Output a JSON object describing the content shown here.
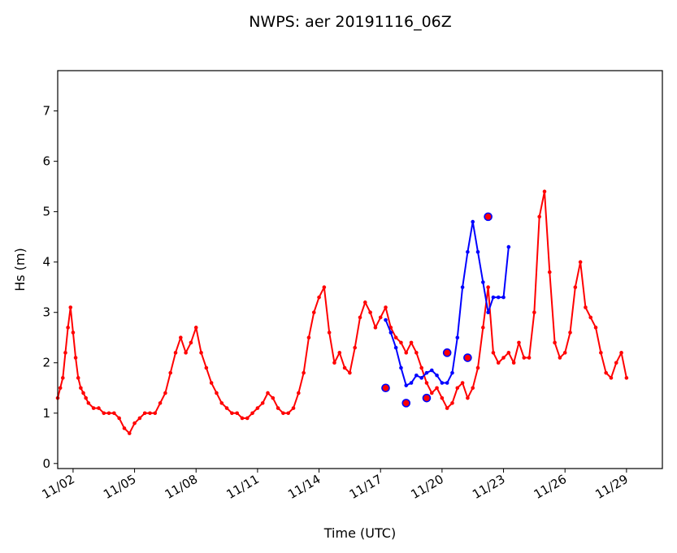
{
  "chart_data": {
    "type": "line",
    "title": "NWPS: aer 20191116_06Z",
    "xlabel": "Time (UTC)",
    "ylabel": "Hs (m)",
    "xlim": [
      "2019-11-01T06:00",
      "2019-11-30T18:00"
    ],
    "ylim": [
      -0.1,
      7.8
    ],
    "x_ticks": [
      {
        "label": "11/02",
        "date": "2019-11-02T00:00"
      },
      {
        "label": "11/05",
        "date": "2019-11-05T00:00"
      },
      {
        "label": "11/08",
        "date": "2019-11-08T00:00"
      },
      {
        "label": "11/11",
        "date": "2019-11-11T00:00"
      },
      {
        "label": "11/14",
        "date": "2019-11-14T00:00"
      },
      {
        "label": "11/17",
        "date": "2019-11-17T00:00"
      },
      {
        "label": "11/20",
        "date": "2019-11-20T00:00"
      },
      {
        "label": "11/23",
        "date": "2019-11-23T00:00"
      },
      {
        "label": "11/26",
        "date": "2019-11-26T00:00"
      },
      {
        "label": "11/29",
        "date": "2019-11-29T00:00"
      }
    ],
    "y_ticks": [
      0,
      1,
      2,
      3,
      4,
      5,
      6,
      7
    ],
    "grid": false,
    "series": [
      {
        "color": "#ff0000",
        "marker": "dot",
        "points": [
          [
            "2019-11-01T06:00",
            1.3
          ],
          [
            "2019-11-01T09:00",
            1.5
          ],
          [
            "2019-11-01T12:00",
            1.7
          ],
          [
            "2019-11-01T15:00",
            2.2
          ],
          [
            "2019-11-01T18:00",
            2.7
          ],
          [
            "2019-11-01T21:00",
            3.1
          ],
          [
            "2019-11-02T00:00",
            2.6
          ],
          [
            "2019-11-02T03:00",
            2.1
          ],
          [
            "2019-11-02T06:00",
            1.7
          ],
          [
            "2019-11-02T09:00",
            1.5
          ],
          [
            "2019-11-02T12:00",
            1.4
          ],
          [
            "2019-11-02T15:00",
            1.3
          ],
          [
            "2019-11-02T18:00",
            1.2
          ],
          [
            "2019-11-03T00:00",
            1.1
          ],
          [
            "2019-11-03T06:00",
            1.1
          ],
          [
            "2019-11-03T12:00",
            1.0
          ],
          [
            "2019-11-03T18:00",
            1.0
          ],
          [
            "2019-11-04T00:00",
            1.0
          ],
          [
            "2019-11-04T06:00",
            0.9
          ],
          [
            "2019-11-04T12:00",
            0.7
          ],
          [
            "2019-11-04T18:00",
            0.6
          ],
          [
            "2019-11-05T00:00",
            0.8
          ],
          [
            "2019-11-05T06:00",
            0.9
          ],
          [
            "2019-11-05T12:00",
            1.0
          ],
          [
            "2019-11-05T18:00",
            1.0
          ],
          [
            "2019-11-06T00:00",
            1.0
          ],
          [
            "2019-11-06T06:00",
            1.2
          ],
          [
            "2019-11-06T12:00",
            1.4
          ],
          [
            "2019-11-06T18:00",
            1.8
          ],
          [
            "2019-11-07T00:00",
            2.2
          ],
          [
            "2019-11-07T06:00",
            2.5
          ],
          [
            "2019-11-07T12:00",
            2.2
          ],
          [
            "2019-11-07T18:00",
            2.4
          ],
          [
            "2019-11-08T00:00",
            2.7
          ],
          [
            "2019-11-08T06:00",
            2.2
          ],
          [
            "2019-11-08T12:00",
            1.9
          ],
          [
            "2019-11-08T18:00",
            1.6
          ],
          [
            "2019-11-09T00:00",
            1.4
          ],
          [
            "2019-11-09T06:00",
            1.2
          ],
          [
            "2019-11-09T12:00",
            1.1
          ],
          [
            "2019-11-09T18:00",
            1.0
          ],
          [
            "2019-11-10T00:00",
            1.0
          ],
          [
            "2019-11-10T06:00",
            0.9
          ],
          [
            "2019-11-10T12:00",
            0.9
          ],
          [
            "2019-11-10T18:00",
            1.0
          ],
          [
            "2019-11-11T00:00",
            1.1
          ],
          [
            "2019-11-11T06:00",
            1.2
          ],
          [
            "2019-11-11T12:00",
            1.4
          ],
          [
            "2019-11-11T18:00",
            1.3
          ],
          [
            "2019-11-12T00:00",
            1.1
          ],
          [
            "2019-11-12T06:00",
            1.0
          ],
          [
            "2019-11-12T12:00",
            1.0
          ],
          [
            "2019-11-12T18:00",
            1.1
          ],
          [
            "2019-11-13T00:00",
            1.4
          ],
          [
            "2019-11-13T06:00",
            1.8
          ],
          [
            "2019-11-13T12:00",
            2.5
          ],
          [
            "2019-11-13T18:00",
            3.0
          ],
          [
            "2019-11-14T00:00",
            3.3
          ],
          [
            "2019-11-14T06:00",
            3.5
          ],
          [
            "2019-11-14T12:00",
            2.6
          ],
          [
            "2019-11-14T18:00",
            2.0
          ],
          [
            "2019-11-15T00:00",
            2.2
          ],
          [
            "2019-11-15T06:00",
            1.9
          ],
          [
            "2019-11-15T12:00",
            1.8
          ],
          [
            "2019-11-15T18:00",
            2.3
          ],
          [
            "2019-11-16T00:00",
            2.9
          ],
          [
            "2019-11-16T06:00",
            3.2
          ],
          [
            "2019-11-16T12:00",
            3.0
          ],
          [
            "2019-11-16T18:00",
            2.7
          ],
          [
            "2019-11-17T00:00",
            2.9
          ],
          [
            "2019-11-17T06:00",
            3.1
          ],
          [
            "2019-11-17T12:00",
            2.7
          ],
          [
            "2019-11-17T18:00",
            2.5
          ],
          [
            "2019-11-18T00:00",
            2.4
          ],
          [
            "2019-11-18T06:00",
            2.2
          ],
          [
            "2019-11-18T12:00",
            2.4
          ],
          [
            "2019-11-18T18:00",
            2.2
          ],
          [
            "2019-11-19T00:00",
            1.9
          ],
          [
            "2019-11-19T06:00",
            1.6
          ],
          [
            "2019-11-19T12:00",
            1.4
          ],
          [
            "2019-11-19T18:00",
            1.5
          ],
          [
            "2019-11-20T00:00",
            1.3
          ],
          [
            "2019-11-20T06:00",
            1.1
          ],
          [
            "2019-11-20T12:00",
            1.2
          ],
          [
            "2019-11-20T18:00",
            1.5
          ],
          [
            "2019-11-21T00:00",
            1.6
          ],
          [
            "2019-11-21T06:00",
            1.3
          ],
          [
            "2019-11-21T12:00",
            1.5
          ],
          [
            "2019-11-21T18:00",
            1.9
          ],
          [
            "2019-11-22T00:00",
            2.7
          ],
          [
            "2019-11-22T06:00",
            3.5
          ],
          [
            "2019-11-22T12:00",
            2.2
          ],
          [
            "2019-11-22T18:00",
            2.0
          ],
          [
            "2019-11-23T00:00",
            2.1
          ],
          [
            "2019-11-23T06:00",
            2.2
          ],
          [
            "2019-11-23T12:00",
            2.0
          ],
          [
            "2019-11-23T18:00",
            2.4
          ],
          [
            "2019-11-24T00:00",
            2.1
          ],
          [
            "2019-11-24T06:00",
            2.1
          ],
          [
            "2019-11-24T12:00",
            3.0
          ],
          [
            "2019-11-24T18:00",
            4.9
          ],
          [
            "2019-11-25T00:00",
            5.4
          ],
          [
            "2019-11-25T06:00",
            3.8
          ],
          [
            "2019-11-25T12:00",
            2.4
          ],
          [
            "2019-11-25T18:00",
            2.1
          ],
          [
            "2019-11-26T00:00",
            2.2
          ],
          [
            "2019-11-26T06:00",
            2.6
          ],
          [
            "2019-11-26T12:00",
            3.5
          ],
          [
            "2019-11-26T18:00",
            4.0
          ],
          [
            "2019-11-27T00:00",
            3.1
          ],
          [
            "2019-11-27T06:00",
            2.9
          ],
          [
            "2019-11-27T12:00",
            2.7
          ],
          [
            "2019-11-27T18:00",
            2.2
          ],
          [
            "2019-11-28T00:00",
            1.8
          ],
          [
            "2019-11-28T06:00",
            1.7
          ],
          [
            "2019-11-28T12:00",
            2.0
          ],
          [
            "2019-11-28T18:00",
            2.2
          ],
          [
            "2019-11-29T00:00",
            1.7
          ]
        ]
      },
      {
        "color": "#0000ff",
        "marker": "dot",
        "points": [
          [
            "2019-11-17T06:00",
            2.85
          ],
          [
            "2019-11-17T12:00",
            2.6
          ],
          [
            "2019-11-17T18:00",
            2.3
          ],
          [
            "2019-11-18T00:00",
            1.9
          ],
          [
            "2019-11-18T06:00",
            1.55
          ],
          [
            "2019-11-18T12:00",
            1.6
          ],
          [
            "2019-11-18T18:00",
            1.75
          ],
          [
            "2019-11-19T00:00",
            1.7
          ],
          [
            "2019-11-19T06:00",
            1.8
          ],
          [
            "2019-11-19T12:00",
            1.85
          ],
          [
            "2019-11-19T18:00",
            1.75
          ],
          [
            "2019-11-20T00:00",
            1.6
          ],
          [
            "2019-11-20T06:00",
            1.6
          ],
          [
            "2019-11-20T12:00",
            1.8
          ],
          [
            "2019-11-20T18:00",
            2.5
          ],
          [
            "2019-11-21T00:00",
            3.5
          ],
          [
            "2019-11-21T06:00",
            4.2
          ],
          [
            "2019-11-21T12:00",
            4.8
          ],
          [
            "2019-11-21T18:00",
            4.2
          ],
          [
            "2019-11-22T00:00",
            3.6
          ],
          [
            "2019-11-22T06:00",
            3.0
          ],
          [
            "2019-11-22T12:00",
            3.3
          ],
          [
            "2019-11-22T18:00",
            3.3
          ],
          [
            "2019-11-23T00:00",
            3.3
          ],
          [
            "2019-11-23T06:00",
            4.3
          ]
        ]
      }
    ],
    "observations": {
      "color": "#0000ff",
      "fill": "#ff0000",
      "points": [
        [
          "2019-11-17T06:00",
          1.5
        ],
        [
          "2019-11-18T06:00",
          1.2
        ],
        [
          "2019-11-19T06:00",
          1.3
        ],
        [
          "2019-11-20T06:00",
          2.2
        ],
        [
          "2019-11-21T06:00",
          2.1
        ],
        [
          "2019-11-22T06:00",
          4.9
        ]
      ]
    }
  }
}
